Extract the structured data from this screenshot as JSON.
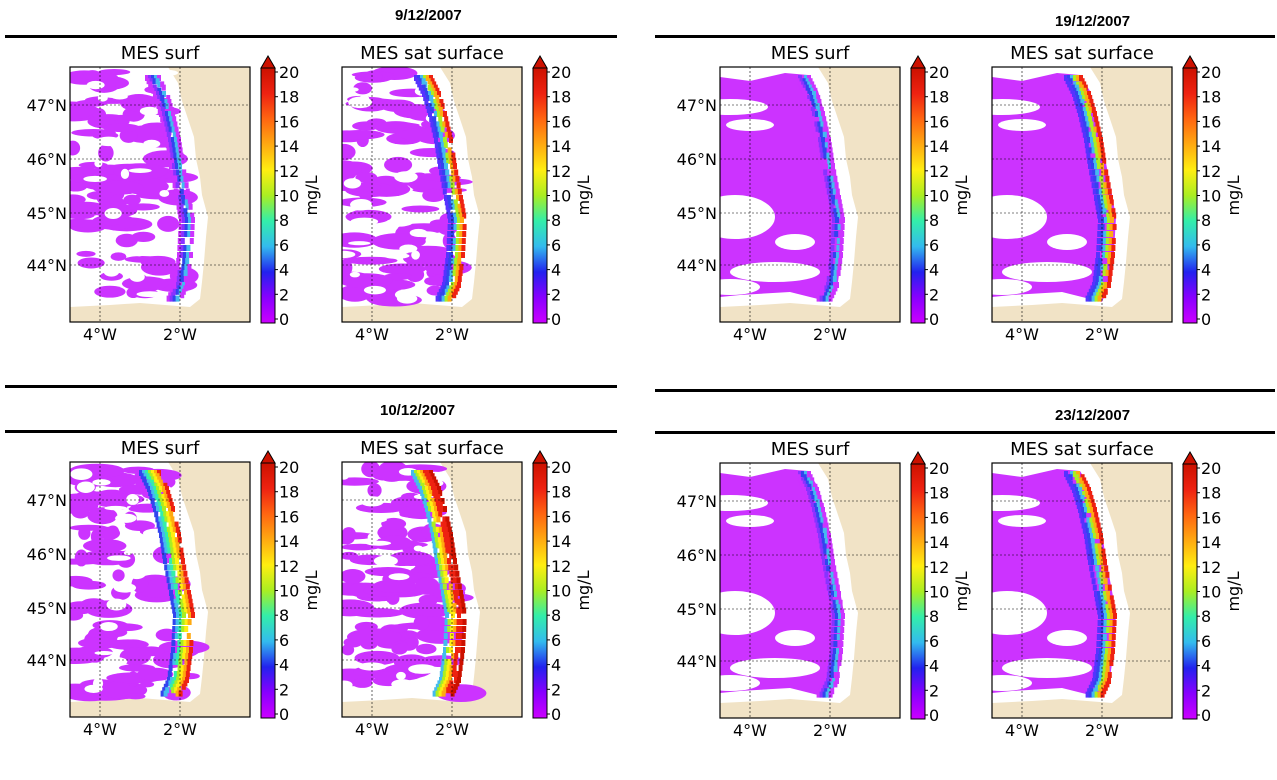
{
  "panels": [
    {
      "date": "9/12/2007",
      "pattern": "patchy",
      "left": {
        "title": "MES surf",
        "coastal": "low"
      },
      "right": {
        "title": "MES sat surface",
        "coastal": "mid"
      }
    },
    {
      "date": "19/12/2007",
      "pattern": "blob",
      "left": {
        "title": "MES surf",
        "coastal": "low"
      },
      "right": {
        "title": "MES sat surface",
        "coastal": "mid"
      }
    },
    {
      "date": "10/12/2007",
      "pattern": "patchy",
      "left": {
        "title": "MES surf",
        "coastal": "high"
      },
      "right": {
        "title": "MES sat surface",
        "coastal": "veryhigh"
      }
    },
    {
      "date": "23/12/2007",
      "pattern": "blob",
      "left": {
        "title": "MES surf",
        "coastal": "low"
      },
      "right": {
        "title": "MES sat surface",
        "coastal": "mid"
      }
    }
  ],
  "axes": {
    "lat_ticks": [
      "47°N",
      "46°N",
      "45°N",
      "44°N"
    ],
    "lon_ticks": [
      "4°W",
      "2°W"
    ]
  },
  "colorbar": {
    "label": "mg/L",
    "ticks": [
      "20",
      "18",
      "16",
      "14",
      "12",
      "10",
      "8",
      "6",
      "4",
      "2",
      "0"
    ],
    "colors": [
      "#cc00ff",
      "#8800ff",
      "#2222ee",
      "#33bbee",
      "#33eeaa",
      "#aaee22",
      "#ffee11",
      "#ffaa11",
      "#ff6611",
      "#ee2211",
      "#cc1100"
    ]
  },
  "colors": {
    "land": "#f1e3c6",
    "water_nodata": "#ffffff",
    "low": "#cc33ff",
    "frame": "#000000"
  }
}
